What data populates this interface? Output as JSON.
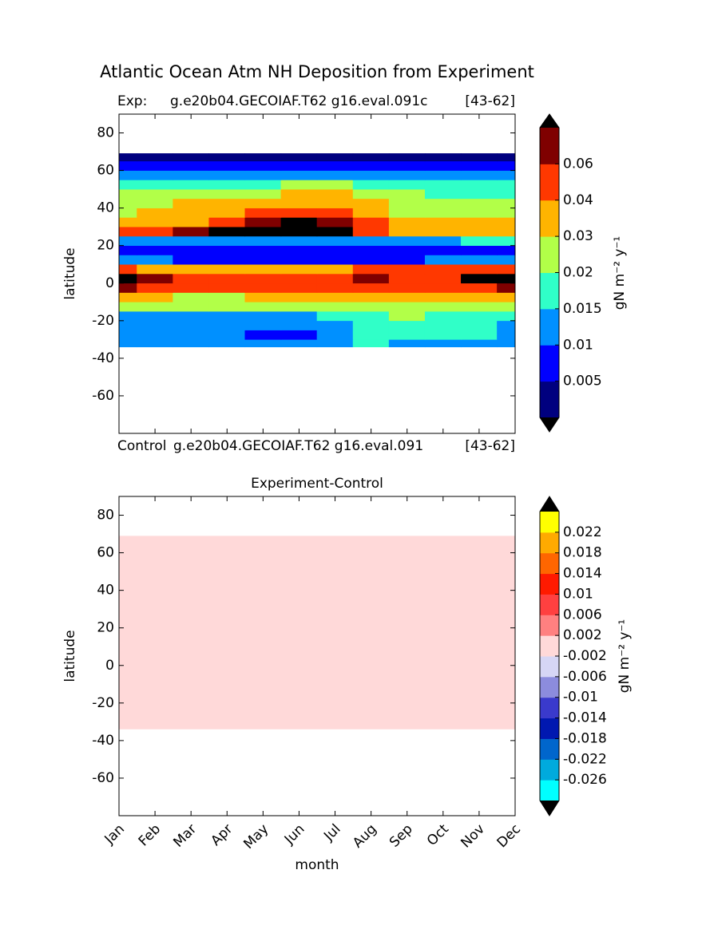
{
  "chart_data": [
    {
      "type": "contourf",
      "title": "Atlantic Ocean Atm NH Deposition from Experiment",
      "subtitle_left": "Exp:",
      "subtitle_center": "g.e20b04.GECOIAF.T62 g16.eval.091c",
      "subtitle_right": "[43-62]",
      "xlabel_left": "Control",
      "xlabel_center": "g.e20b04.GECOIAF.T62 g16.eval.091",
      "xlabel_right": "[43-62]",
      "ylabel": "latitude",
      "categories": [
        "Jan",
        "Feb",
        "Mar",
        "Apr",
        "May",
        "Jun",
        "Jul",
        "Aug",
        "Sep",
        "Oct",
        "Nov",
        "Dec"
      ],
      "ylim": [
        -80,
        90
      ],
      "yticks": [
        80,
        60,
        40,
        20,
        0,
        -20,
        -40,
        -60
      ],
      "lat_edges": [
        -34,
        -30,
        -25,
        -20,
        -15,
        -10,
        -5,
        0,
        5,
        10,
        15,
        20,
        25,
        30,
        35,
        40,
        45,
        50,
        55,
        60,
        65,
        69
      ],
      "values": [
        [
          0.013,
          0.013,
          0.013,
          0.013,
          0.013,
          0.013,
          0.013,
          0.017,
          0.013,
          0.013,
          0.013,
          0.013
        ],
        [
          0.013,
          0.013,
          0.013,
          0.013,
          0.008,
          0.008,
          0.013,
          0.017,
          0.017,
          0.017,
          0.017,
          0.013
        ],
        [
          0.013,
          0.013,
          0.013,
          0.013,
          0.013,
          0.013,
          0.013,
          0.017,
          0.017,
          0.017,
          0.017,
          0.013
        ],
        [
          0.013,
          0.013,
          0.013,
          0.013,
          0.013,
          0.013,
          0.017,
          0.017,
          0.025,
          0.017,
          0.017,
          0.017
        ],
        [
          0.025,
          0.025,
          0.025,
          0.025,
          0.025,
          0.025,
          0.025,
          0.025,
          0.025,
          0.025,
          0.025,
          0.025
        ],
        [
          0.035,
          0.035,
          0.025,
          0.025,
          0.035,
          0.035,
          0.035,
          0.035,
          0.035,
          0.035,
          0.035,
          0.035
        ],
        [
          0.065,
          0.045,
          0.045,
          0.045,
          0.045,
          0.045,
          0.045,
          0.045,
          0.045,
          0.045,
          0.045,
          0.065
        ],
        [
          0.08,
          0.065,
          0.045,
          0.045,
          0.045,
          0.045,
          0.045,
          0.065,
          0.045,
          0.045,
          0.08,
          0.08
        ],
        [
          0.045,
          0.035,
          0.035,
          0.035,
          0.035,
          0.035,
          0.035,
          0.045,
          0.045,
          0.045,
          0.045,
          0.045
        ],
        [
          0.012,
          0.012,
          0.008,
          0.008,
          0.008,
          0.008,
          0.008,
          0.008,
          0.008,
          0.012,
          0.012,
          0.012
        ],
        [
          0.008,
          0.008,
          0.008,
          0.008,
          0.008,
          0.008,
          0.008,
          0.008,
          0.008,
          0.008,
          0.008,
          0.008
        ],
        [
          0.013,
          0.013,
          0.013,
          0.013,
          0.013,
          0.013,
          0.013,
          0.013,
          0.013,
          0.013,
          0.017,
          0.017
        ],
        [
          0.045,
          0.045,
          0.065,
          0.08,
          0.08,
          0.08,
          0.08,
          0.045,
          0.035,
          0.035,
          0.035,
          0.035
        ],
        [
          0.035,
          0.035,
          0.035,
          0.045,
          0.065,
          0.08,
          0.065,
          0.045,
          0.035,
          0.035,
          0.035,
          0.035
        ],
        [
          0.025,
          0.035,
          0.035,
          0.035,
          0.045,
          0.045,
          0.045,
          0.035,
          0.025,
          0.025,
          0.025,
          0.025
        ],
        [
          0.025,
          0.025,
          0.035,
          0.035,
          0.035,
          0.035,
          0.035,
          0.035,
          0.025,
          0.025,
          0.025,
          0.025
        ],
        [
          0.025,
          0.025,
          0.025,
          0.025,
          0.025,
          0.035,
          0.035,
          0.025,
          0.025,
          0.017,
          0.017,
          0.017
        ],
        [
          0.017,
          0.017,
          0.017,
          0.017,
          0.017,
          0.025,
          0.025,
          0.017,
          0.017,
          0.017,
          0.017,
          0.017
        ],
        [
          0.012,
          0.012,
          0.012,
          0.012,
          0.012,
          0.012,
          0.012,
          0.012,
          0.012,
          0.012,
          0.012,
          0.012
        ],
        [
          0.008,
          0.008,
          0.008,
          0.008,
          0.008,
          0.008,
          0.008,
          0.008,
          0.008,
          0.008,
          0.008,
          0.008
        ],
        [
          0.003,
          0.003,
          0.003,
          0.003,
          0.003,
          0.003,
          0.003,
          0.003,
          0.003,
          0.003,
          0.003,
          0.003
        ]
      ],
      "colorbar": {
        "label": "gN m⁻² y⁻¹",
        "clim": [
          0,
          0.07
        ],
        "ticks": [
          0.005,
          0.01,
          0.015,
          0.02,
          0.03,
          0.04,
          0.06
        ],
        "colors": [
          "#00007f",
          "#0000ff",
          "#0090ff",
          "#30ffc8",
          "#b2ff48",
          "#ffb400",
          "#ff3800",
          "#7f0000"
        ],
        "extend_color": "#000000"
      }
    },
    {
      "type": "region",
      "title": "Experiment-Control",
      "xlabel": "month",
      "ylabel": "latitude",
      "categories": [
        "Jan",
        "Feb",
        "Mar",
        "Apr",
        "May",
        "Jun",
        "Jul",
        "Aug",
        "Sep",
        "Oct",
        "Nov",
        "Dec"
      ],
      "ylim": [
        -80,
        90
      ],
      "yticks": [
        80,
        60,
        40,
        20,
        0,
        -20,
        -40,
        -60
      ],
      "lat_range": [
        -34,
        69
      ],
      "value": 0,
      "colorbar": {
        "label": "gN m⁻² y⁻¹",
        "clim": [
          -0.03,
          0.026
        ],
        "ticks": [
          -0.026,
          -0.022,
          -0.018,
          -0.014,
          -0.01,
          -0.006,
          -0.002,
          0.002,
          0.006,
          0.01,
          0.014,
          0.018,
          0.022
        ],
        "colors": [
          "#00ffff",
          "#00aadd",
          "#0066cc",
          "#0018b0",
          "#3a3acc",
          "#8c8cdd",
          "#d6d6f5",
          "#ffd9d9",
          "#ff8080",
          "#ff4040",
          "#ff1a00",
          "#ff6600",
          "#ffaa00",
          "#ffff00"
        ],
        "extend_color": "#000000"
      }
    }
  ]
}
